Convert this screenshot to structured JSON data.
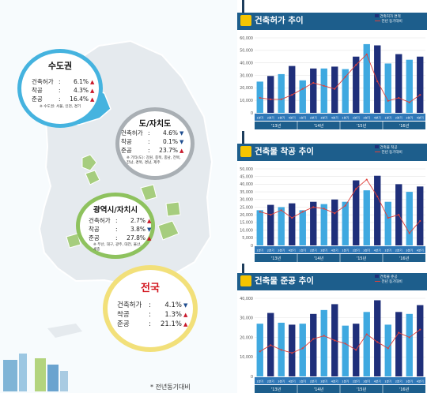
{
  "regions": [
    {
      "title": "수도권",
      "stats": [
        {
          "label": "건축허가",
          "value": "6.1%",
          "dir": "up"
        },
        {
          "label": "착공",
          "value": "4.3%",
          "dir": "up"
        },
        {
          "label": "준공",
          "value": "16.4%",
          "dir": "up"
        }
      ],
      "note": "※ 수도권: 서울, 인천, 경기"
    },
    {
      "title": "도/자치도",
      "stats": [
        {
          "label": "건축허가",
          "value": "4.6%",
          "dir": "down"
        },
        {
          "label": "착공",
          "value": "0.1%",
          "dir": "down"
        },
        {
          "label": "준공",
          "value": "23.7%",
          "dir": "up"
        }
      ],
      "note": "※ 기타(도): 강원, 충북, 충남, 전북, 전남, 경북, 경남, 제주"
    },
    {
      "title": "광역시/자치시",
      "stats": [
        {
          "label": "건축허가",
          "value": "2.7%",
          "dir": "up"
        },
        {
          "label": "착공",
          "value": "3.8%",
          "dir": "down"
        },
        {
          "label": "준공",
          "value": "27.8%",
          "dir": "up"
        }
      ],
      "note": "※ 부산, 대구, 광주, 대전, 울산, 세종"
    },
    {
      "title": "전국",
      "stats": [
        {
          "label": "건축허가",
          "value": "4.1%",
          "dir": "down"
        },
        {
          "label": "착공",
          "value": "1.3%",
          "dir": "up"
        },
        {
          "label": "준공",
          "value": "21.1%",
          "dir": "up"
        }
      ]
    }
  ],
  "footnote": "* 전년동기대비",
  "colors": {
    "bar_light": "#3fa9e0",
    "bar_dark": "#1f2f7a",
    "line": "#e0403a",
    "header": "#1d5e8c",
    "region_light": "#45b3df",
    "region_green": "#a6cd7e"
  },
  "chart_data": [
    {
      "type": "bar",
      "title": "건축허가 추이",
      "series": [
        {
          "name": "건축허가 면적",
          "values": [
            25000,
            29500,
            31000,
            37500,
            26000,
            35500,
            35500,
            37000,
            35000,
            45000,
            55000,
            54000,
            39500,
            47000,
            42500,
            45000
          ]
        },
        {
          "name": "전년 동기대비",
          "values": [
            null,
            null,
            null,
            null,
            null,
            null,
            null,
            null,
            null,
            null,
            null,
            null,
            null,
            null,
            null,
            null
          ]
        }
      ],
      "ticks": [
        "0",
        "10,000",
        "20,000",
        "30,000",
        "40,000",
        "50,000",
        "60,000"
      ],
      "ylim": [
        0,
        60000
      ],
      "quarters": [
        "1분기",
        "2분기",
        "3분기",
        "4분기",
        "1분기",
        "2분기",
        "3분기",
        "4분기",
        "1분기",
        "2분기",
        "3분기",
        "4분기",
        "1분기",
        "2분기",
        "3분기",
        "4분기"
      ],
      "years": [
        "'13년",
        "'14년",
        "'15년",
        "'16년"
      ],
      "pct": [
        10,
        9,
        9,
        12,
        16,
        20,
        18,
        16,
        24,
        32,
        39,
        21,
        8,
        10,
        7,
        12
      ]
    },
    {
      "type": "bar",
      "title": "건축물 착공 추이",
      "series": [
        {
          "name": "건축물 착공",
          "values": [
            23000,
            26500,
            25000,
            27500,
            23000,
            28500,
            27000,
            30000,
            28500,
            42500,
            36000,
            45500,
            28500,
            40000,
            35000,
            38500
          ]
        },
        {
          "name": "전년 동기대비",
          "values": [
            null,
            null,
            null,
            null,
            null,
            null,
            null,
            null,
            null,
            null,
            null,
            null,
            null,
            null,
            null,
            null
          ]
        }
      ],
      "ticks": [
        "0",
        "5,000",
        "10,000",
        "15,000",
        "20,000",
        "25,000",
        "30,000",
        "35,000",
        "40,000",
        "45,000",
        "50,000"
      ],
      "ylim": [
        0,
        50000
      ],
      "quarters": [
        "1분기",
        "2분기",
        "3분기",
        "4분기",
        "1분기",
        "2분기",
        "3분기",
        "4분기",
        "1분기",
        "2분기",
        "3분기",
        "4분기",
        "1분기",
        "2분기",
        "3분기",
        "4분기"
      ],
      "years": [
        "'13년",
        "'14년",
        "'15년",
        "'16년"
      ],
      "pct": [
        22,
        20,
        23,
        18,
        22,
        25,
        24,
        21,
        26,
        37,
        43,
        32,
        18,
        20,
        8,
        16
      ]
    },
    {
      "type": "bar",
      "title": "건축물 준공 추이",
      "series": [
        {
          "name": "건축물 준공",
          "values": [
            27000,
            32500,
            27500,
            26500,
            27000,
            32000,
            34000,
            37000,
            26000,
            27000,
            33000,
            39000,
            26500,
            33000,
            32000,
            36500
          ]
        },
        {
          "name": "전년 동기대비",
          "values": [
            null,
            null,
            null,
            null,
            null,
            null,
            null,
            null,
            null,
            null,
            null,
            null,
            null,
            null,
            null,
            null
          ]
        }
      ],
      "ticks": [
        "0",
        "10,000",
        "20,000",
        "30,000",
        "40,000"
      ],
      "ylim": [
        0,
        40000
      ],
      "quarters": [
        "1분기",
        "2분기",
        "3분기",
        "4분기",
        "1분기",
        "2분기",
        "3분기",
        "4분기",
        "1분기",
        "2분기",
        "3분기",
        "4분기",
        "1분기",
        "2분기",
        "3분기",
        "4분기"
      ],
      "years": [
        "'13년",
        "'14년",
        "'15년",
        "'16년"
      ],
      "pct": [
        16,
        20,
        17,
        15,
        18,
        24,
        26,
        23,
        21,
        17,
        27,
        22,
        18,
        28,
        25,
        30
      ]
    }
  ]
}
